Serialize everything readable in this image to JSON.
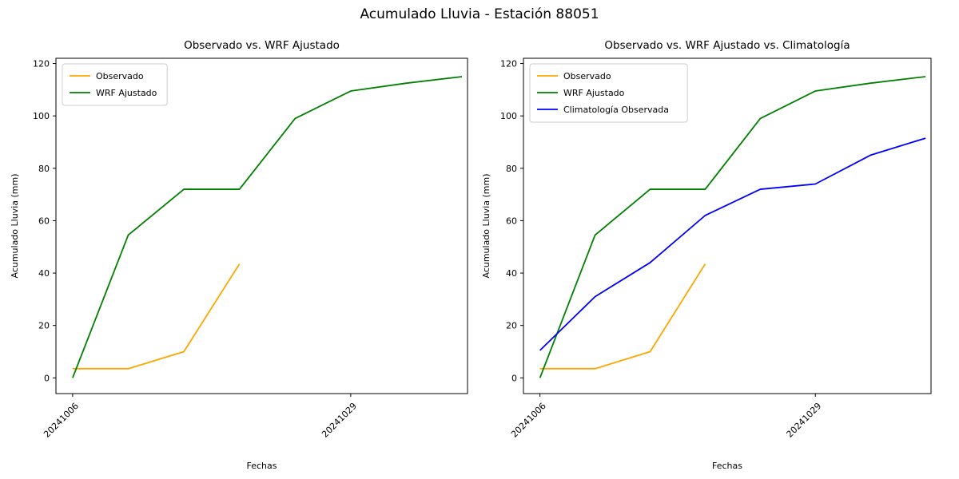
{
  "suptitle": "Acumulado Lluvia - Estación 88051",
  "chart_data": [
    {
      "type": "line",
      "title": "Observado vs. WRF Ajustado",
      "xlabel": "Fechas",
      "ylabel": "Acumulado Lluvia (mm)",
      "x": [
        0,
        1,
        2,
        3,
        4,
        5,
        6,
        7
      ],
      "x_tick_positions": [
        0,
        5
      ],
      "x_tick_labels": [
        "20241006",
        "20241029"
      ],
      "y_ticks": [
        0,
        20,
        40,
        60,
        80,
        100,
        120
      ],
      "xlim": [
        -0.3,
        7.1
      ],
      "ylim": [
        -6,
        122
      ],
      "grid": false,
      "legend_position": "upper left",
      "series": [
        {
          "name": "Observado",
          "color": "#FFA500",
          "values": [
            3.5,
            3.5,
            10,
            43.5,
            null,
            null,
            null,
            null
          ]
        },
        {
          "name": "WRF Ajustado",
          "color": "#008000",
          "values": [
            0,
            54.5,
            72,
            72,
            99,
            109.5,
            112.5,
            115
          ]
        }
      ]
    },
    {
      "type": "line",
      "title": "Observado vs. WRF Ajustado vs. Climatología",
      "xlabel": "Fechas",
      "ylabel": "Acumulado Lluvia (mm)",
      "x": [
        0,
        1,
        2,
        3,
        4,
        5,
        6,
        7
      ],
      "x_tick_positions": [
        0,
        5
      ],
      "x_tick_labels": [
        "20241006",
        "20241029"
      ],
      "y_ticks": [
        0,
        20,
        40,
        60,
        80,
        100,
        120
      ],
      "xlim": [
        -0.3,
        7.1
      ],
      "ylim": [
        -6,
        122
      ],
      "grid": false,
      "legend_position": "upper left",
      "series": [
        {
          "name": "Observado",
          "color": "#FFA500",
          "values": [
            3.5,
            3.5,
            10,
            43.5,
            null,
            null,
            null,
            null
          ]
        },
        {
          "name": "WRF Ajustado",
          "color": "#008000",
          "values": [
            0,
            54.5,
            72,
            72,
            99,
            109.5,
            112.5,
            115
          ]
        },
        {
          "name": "Climatología Observada",
          "color": "#0000FF",
          "values": [
            10.5,
            31,
            44,
            62,
            72,
            74,
            85,
            91.5
          ]
        }
      ]
    }
  ],
  "style": {
    "axis_color": "#000000",
    "text_color": "#000000",
    "legend_border_color": "#cccccc",
    "background": "#ffffff"
  }
}
